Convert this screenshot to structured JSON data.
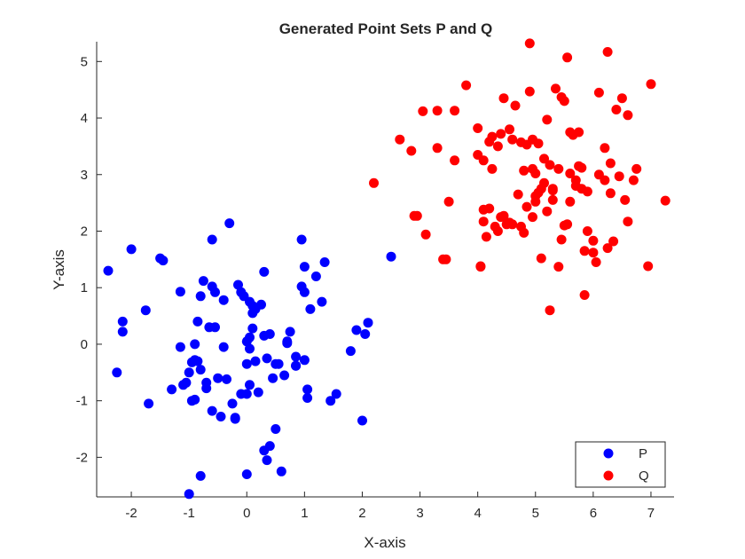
{
  "chart_data": {
    "type": "scatter",
    "title": "Generated Point Sets P and Q",
    "xlabel": "X-axis",
    "ylabel": "Y-axis",
    "xlim": [
      -2.6,
      7.4
    ],
    "ylim": [
      -2.7,
      5.35
    ],
    "xticks": [
      -2,
      -1,
      0,
      1,
      2,
      3,
      4,
      5,
      6,
      7
    ],
    "yticks": [
      -2,
      -1,
      0,
      1,
      2,
      3,
      4,
      5
    ],
    "grid": false,
    "legend_position": "bottom-right",
    "series": [
      {
        "name": "P",
        "color": "#0000ff",
        "x": [
          -2.4,
          -2.25,
          -2.15,
          -2.15,
          -2.0,
          -1.75,
          -1.7,
          -1.5,
          -1.45,
          -1.3,
          -1.15,
          -1.1,
          -1.05,
          -1.0,
          -0.95,
          -0.9,
          -0.9,
          -0.85,
          -0.85,
          -0.8,
          -0.75,
          -0.7,
          -0.65,
          -0.6,
          -0.6,
          -0.55,
          -0.55,
          -0.5,
          -0.45,
          -0.4,
          -0.35,
          -0.3,
          -0.25,
          -0.2,
          -0.15,
          -0.1,
          0.0,
          0.0,
          0.0,
          0.05,
          0.05,
          0.05,
          0.1,
          0.1,
          0.15,
          0.2,
          0.25,
          0.3,
          0.35,
          0.4,
          0.5,
          0.55,
          0.65,
          0.7,
          0.75,
          0.85,
          0.85,
          0.95,
          1.0,
          1.0,
          1.05,
          1.05,
          1.1,
          1.2,
          1.3,
          1.35,
          1.45,
          1.55,
          1.8,
          1.9,
          2.0,
          2.05,
          2.1,
          -0.05,
          0.1,
          0.15,
          0.3,
          0.45,
          0.5,
          0.7,
          -1.15,
          -0.9,
          -0.7,
          -0.4,
          -0.1,
          0.05,
          0.3,
          0.6,
          0.85,
          -0.2,
          0.4,
          -0.95,
          -0.8,
          -1.0,
          0.0,
          0.35,
          0.95,
          1.0,
          2.5,
          -0.8,
          -0.6
        ],
        "y": [
          1.3,
          -0.5,
          0.4,
          0.22,
          1.68,
          0.6,
          -1.05,
          1.52,
          1.48,
          -0.8,
          0.93,
          -0.72,
          -0.68,
          -0.5,
          -0.32,
          -0.98,
          0.0,
          0.4,
          -0.3,
          -0.45,
          1.12,
          -0.78,
          0.3,
          1.02,
          -1.18,
          0.92,
          0.3,
          -0.6,
          -1.28,
          0.78,
          -0.62,
          2.14,
          -1.05,
          -1.32,
          1.05,
          0.92,
          0.05,
          -0.35,
          -0.88,
          0.75,
          0.12,
          -0.08,
          0.68,
          0.55,
          0.62,
          -0.85,
          0.7,
          1.28,
          -0.25,
          0.18,
          -0.35,
          -0.35,
          -0.55,
          0.05,
          0.22,
          -0.38,
          -0.22,
          1.02,
          0.92,
          -0.28,
          -0.8,
          -0.95,
          0.62,
          1.2,
          0.75,
          1.45,
          -1.0,
          -0.88,
          -0.12,
          0.25,
          -1.35,
          0.18,
          0.38,
          0.85,
          0.28,
          -0.3,
          0.15,
          -0.6,
          -1.5,
          0.02,
          -0.05,
          -0.28,
          -0.68,
          -0.05,
          -0.88,
          -0.72,
          -1.88,
          -2.25,
          -0.38,
          -1.3,
          -1.8,
          -1.0,
          -2.33,
          -2.65,
          -2.3,
          -2.05,
          1.85,
          1.37,
          1.55,
          0.85,
          1.85
        ],
        "marker": "filled-circle"
      },
      {
        "name": "Q",
        "color": "#ff0000",
        "x": [
          2.2,
          2.65,
          2.85,
          2.9,
          3.05,
          3.1,
          3.3,
          3.45,
          3.5,
          3.6,
          3.8,
          4.0,
          4.05,
          4.1,
          4.1,
          4.15,
          4.2,
          4.25,
          4.3,
          4.35,
          4.4,
          4.45,
          4.5,
          4.55,
          4.6,
          4.65,
          4.75,
          4.8,
          4.85,
          4.9,
          4.95,
          5.0,
          5.0,
          5.05,
          5.1,
          5.15,
          5.2,
          5.25,
          5.3,
          5.35,
          5.4,
          5.45,
          5.5,
          5.55,
          5.6,
          5.65,
          5.7,
          5.75,
          5.8,
          5.85,
          5.9,
          6.0,
          6.05,
          6.1,
          6.2,
          6.25,
          6.3,
          6.35,
          6.45,
          6.5,
          6.55,
          6.6,
          6.7,
          6.75,
          6.95,
          7.0,
          7.25,
          4.0,
          4.1,
          4.2,
          4.35,
          4.45,
          4.6,
          4.75,
          4.8,
          4.85,
          4.95,
          5.05,
          5.15,
          5.2,
          5.3,
          5.45,
          5.5,
          5.6,
          5.7,
          5.8,
          5.9,
          6.0,
          6.1,
          6.2,
          6.3,
          4.25,
          4.4,
          4.55,
          5.0,
          5.1,
          5.3,
          5.6,
          5.85,
          3.3,
          3.6,
          2.95,
          3.4,
          4.95,
          5.55,
          6.25,
          5.25,
          4.7,
          4.05,
          5.4,
          6.4,
          6.6,
          5.75,
          4.9
        ],
        "y": [
          2.85,
          3.62,
          3.42,
          2.27,
          4.12,
          1.94,
          3.47,
          1.5,
          2.52,
          4.13,
          4.58,
          3.82,
          1.38,
          2.38,
          2.17,
          1.9,
          3.58,
          3.67,
          2.08,
          3.5,
          3.72,
          4.35,
          2.12,
          3.8,
          3.62,
          4.22,
          3.57,
          1.97,
          3.53,
          4.47,
          3.62,
          3.02,
          2.52,
          3.55,
          1.52,
          3.28,
          3.97,
          3.17,
          2.75,
          4.52,
          3.1,
          4.37,
          4.3,
          5.07,
          3.75,
          3.7,
          2.8,
          3.15,
          3.12,
          0.87,
          2.0,
          1.83,
          1.45,
          4.45,
          3.47,
          5.17,
          3.2,
          1.82,
          2.97,
          4.35,
          2.55,
          2.17,
          2.9,
          3.1,
          1.38,
          4.6,
          2.54,
          3.35,
          3.25,
          2.4,
          2.0,
          2.27,
          2.12,
          2.08,
          3.07,
          2.43,
          2.25,
          2.68,
          2.85,
          2.35,
          2.72,
          1.85,
          2.1,
          3.02,
          2.9,
          2.75,
          2.7,
          1.62,
          3.0,
          2.9,
          2.67,
          3.1,
          2.25,
          2.15,
          2.62,
          2.75,
          2.55,
          2.52,
          1.65,
          4.13,
          3.25,
          2.27,
          1.5,
          3.1,
          2.12,
          1.7,
          0.6,
          2.65,
          1.37,
          1.37,
          4.15,
          4.05,
          3.75,
          5.32
        ],
        "marker": "filled-circle"
      }
    ]
  }
}
